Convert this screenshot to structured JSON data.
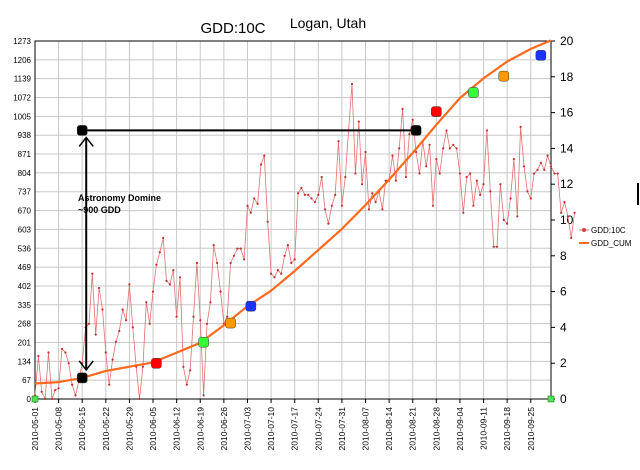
{
  "chart_data": {
    "type": "line",
    "title": "GDD:10C",
    "subtitle": "Logan, Utah",
    "y_left_ticks": [
      "1273",
      "1206",
      "1139",
      "1072",
      "1005",
      "938",
      "871",
      "804",
      "737",
      "670",
      "603",
      "536",
      "469",
      "402",
      "335",
      "268",
      "201",
      "134",
      "67",
      "0"
    ],
    "y_right_ticks": [
      "20",
      "18",
      "16",
      "14",
      "12",
      "10",
      "8",
      "6",
      "4",
      "2",
      "0"
    ],
    "ylim_left": [
      0,
      1273
    ],
    "ylim_right": [
      0,
      20
    ],
    "x_tick_labels": [
      "2010-05-01",
      "2010-05-08",
      "2010-05-15",
      "2010-05-22",
      "2010-05-29",
      "2010-06-05",
      "2010-06-12",
      "2010-06-19",
      "2010-06-26",
      "2010-07-03",
      "2010-07-10",
      "2010-07-17",
      "2010-07-24",
      "2010-07-31",
      "2010-08-07",
      "2010-08-14",
      "2010-08-21",
      "2010-08-28",
      "2010-09-04",
      "2010-09-11",
      "2010-09-18",
      "2010-09-25"
    ],
    "x_range_days": [
      0,
      153
    ],
    "legend": {
      "position": "right",
      "entries": [
        "GDD:10C",
        "GDD_CUM"
      ]
    },
    "series": [
      {
        "name": "GDD:10C",
        "axis": "right",
        "color": "#e07070",
        "values": [
          0.2,
          2.4,
          0.4,
          0,
          2.6,
          0,
          0.5,
          0.6,
          2.8,
          2.6,
          2.0,
          0.8,
          0.2,
          1.0,
          2.0,
          4.0,
          4.2,
          7.0,
          3.6,
          6.2,
          5.0,
          2.6,
          0.8,
          2.2,
          3.2,
          3.8,
          5.0,
          4.4,
          6.4,
          4.0,
          1.8,
          0,
          1.8,
          5.4,
          4.2,
          6.0,
          7.5,
          8.2,
          9.0,
          6.6,
          6.4,
          7.2,
          4.6,
          6.8,
          1.8,
          0.8,
          1.6,
          4.6,
          7.6,
          4.4,
          0.2,
          4.2,
          5.4,
          8.6,
          7.6,
          6.0,
          4.2,
          4.6,
          7.6,
          8.0,
          8.4,
          8.4,
          7.8,
          10.8,
          10.4,
          11.2,
          10.9,
          13.1,
          13.6,
          9.9,
          7.0,
          6.8,
          7.2,
          7.0,
          8.0,
          8.6,
          7.6,
          7.8,
          11.5,
          11.8,
          11.4,
          11.4,
          11.2,
          11.0,
          11.4,
          12.4,
          10.6,
          9.8,
          10.8,
          11.4,
          14.4,
          10.8,
          12.4,
          15.0,
          17.6,
          12.6,
          15.5,
          12.0,
          13.8,
          10.6,
          11.5,
          11.0,
          11.6,
          10.6,
          12.2,
          12.2,
          13.6,
          12.2,
          14.0,
          16.2,
          12.4,
          14.8,
          15.6,
          13.8,
          12.6,
          14.4,
          13.0,
          14.2,
          10.8,
          13.4,
          12.6,
          14.0,
          15.0,
          14.0,
          14.2,
          14.0,
          12.6,
          10.4,
          12.4,
          12.6,
          10.8,
          12.2,
          11.4,
          12.0,
          15.0,
          11.6,
          8.5,
          8.5,
          12.0,
          10.0,
          9.8,
          11.2,
          13.4,
          10.2,
          15.2,
          13.0,
          11.6,
          11.2,
          12.6,
          12.8,
          13.2,
          12.8,
          13.6,
          13.0,
          12.6,
          12.6,
          10.4,
          11.0,
          10.2,
          9.0,
          10.4
        ],
        "values_note": "daily GDD values (read from right axis)"
      },
      {
        "name": "GDD_CUM",
        "axis": "left",
        "color": "#ff6a1f",
        "x_days": [
          0,
          7,
          14,
          21,
          28,
          35,
          42,
          49,
          56,
          63,
          70,
          77,
          84,
          91,
          98,
          105,
          112,
          119,
          126,
          133,
          140,
          147,
          153
        ],
        "values": [
          55,
          60,
          75,
          100,
          115,
          130,
          165,
          200,
          262,
          330,
          385,
          455,
          530,
          605,
          690,
          780,
          875,
          975,
          1070,
          1140,
          1200,
          1245,
          1275
        ]
      }
    ],
    "markers": [
      {
        "day": 14,
        "value": 75,
        "color": "#000000"
      },
      {
        "day": 14,
        "value": 955,
        "color": "#000000"
      },
      {
        "day": 113,
        "value": 955,
        "color": "#000000"
      },
      {
        "day": 36,
        "value": 127,
        "color": "#ff0000"
      },
      {
        "day": 50,
        "value": 202,
        "color": "#33ff33"
      },
      {
        "day": 58,
        "value": 270,
        "color": "#ff9900"
      },
      {
        "day": 64,
        "value": 330,
        "color": "#1a33ff"
      },
      {
        "day": 119,
        "value": 1022,
        "color": "#ff0000"
      },
      {
        "day": 130,
        "value": 1090,
        "color": "#33ff33"
      },
      {
        "day": 139,
        "value": 1148,
        "color": "#ff9900"
      },
      {
        "day": 150,
        "value": 1222,
        "color": "#1a33ff"
      },
      {
        "day": 0,
        "value": 0,
        "color": "#55dd55"
      },
      {
        "day": 153,
        "value": 0,
        "color": "#55dd55"
      }
    ],
    "annotation": {
      "text_line1": "Astronomy Domine",
      "text_line2": "~900 GDD"
    },
    "grid": true
  }
}
